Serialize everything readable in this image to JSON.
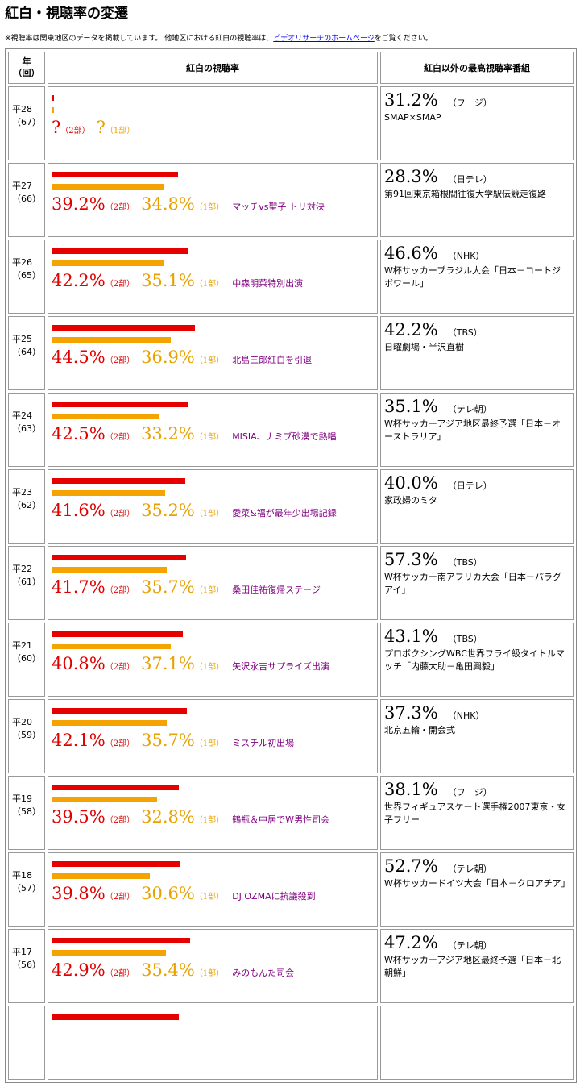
{
  "page": {
    "title": "紅白・視聴率の変遷",
    "note_before": "※視聴率は関東地区のデータを掲載しています。 他地区における紅白の視聴率は、",
    "note_link": "ビデオリサーチのホームページ",
    "note_after": "をご覧ください。"
  },
  "header": {
    "year_label": "年",
    "year_sub": "（回）",
    "kohaku_label": "紅白の視聴率",
    "top_label": "紅白以外の最高視聴率番組"
  },
  "labels": {
    "part2": "（2部）",
    "part1": "（1部）"
  },
  "colors": {
    "part2": "#e60000",
    "part1": "#f5a300",
    "event": "#800080"
  },
  "bar_scale_max": 100,
  "rows": [
    {
      "year": "平28",
      "num": "（67）",
      "part2": "?",
      "part1": "?",
      "part2_value": 1,
      "part1_value": 1,
      "event": "",
      "top_rating": "31.2%",
      "top_network": "（フ　ジ）",
      "top_program": "SMAP×SMAP"
    },
    {
      "year": "平27",
      "num": "（66）",
      "part2": "39.2%",
      "part1": "34.8%",
      "part2_value": 39.2,
      "part1_value": 34.8,
      "event": "マッチvs聖子 トリ対決",
      "top_rating": "28.3%",
      "top_network": "（日テレ）",
      "top_program": "第91回東京箱根間往復大学駅伝競走復路"
    },
    {
      "year": "平26",
      "num": "（65）",
      "part2": "42.2%",
      "part1": "35.1%",
      "part2_value": 42.2,
      "part1_value": 35.1,
      "event": "中森明菜特別出演",
      "top_rating": "46.6%",
      "top_network": "（NHK）",
      "top_program": "W杯サッカーブラジル大会「日本－コートジボワール」"
    },
    {
      "year": "平25",
      "num": "（64）",
      "part2": "44.5%",
      "part1": "36.9%",
      "part2_value": 44.5,
      "part1_value": 36.9,
      "event": "北島三郎紅白を引退",
      "top_rating": "42.2%",
      "top_network": "（TBS）",
      "top_program": "日曜劇場・半沢直樹"
    },
    {
      "year": "平24",
      "num": "（63）",
      "part2": "42.5%",
      "part1": "33.2%",
      "part2_value": 42.5,
      "part1_value": 33.2,
      "event": "MISIA、ナミブ砂漠で熱唱",
      "top_rating": "35.1%",
      "top_network": "（テレ朝）",
      "top_program": "W杯サッカーアジア地区最終予選「日本－オーストラリア」"
    },
    {
      "year": "平23",
      "num": "（62）",
      "part2": "41.6%",
      "part1": "35.2%",
      "part2_value": 41.6,
      "part1_value": 35.2,
      "event": "愛菜&福が最年少出場記録",
      "top_rating": "40.0%",
      "top_network": "（日テレ）",
      "top_program": "家政婦のミタ"
    },
    {
      "year": "平22",
      "num": "（61）",
      "part2": "41.7%",
      "part1": "35.7%",
      "part2_value": 41.7,
      "part1_value": 35.7,
      "event": "桑田佳祐復帰ステージ",
      "top_rating": "57.3%",
      "top_network": "（TBS）",
      "top_program": "W杯サッカー南アフリカ大会「日本－パラグアイ」"
    },
    {
      "year": "平21",
      "num": "（60）",
      "part2": "40.8%",
      "part1": "37.1%",
      "part2_value": 40.8,
      "part1_value": 37.1,
      "event": "矢沢永吉サプライズ出演",
      "top_rating": "43.1%",
      "top_network": "（TBS）",
      "top_program": "プロボクシングWBC世界フライ級タイトルマッチ「内藤大助－亀田興毅」"
    },
    {
      "year": "平20",
      "num": "（59）",
      "part2": "42.1%",
      "part1": "35.7%",
      "part2_value": 42.1,
      "part1_value": 35.7,
      "event": "ミスチル初出場",
      "top_rating": "37.3%",
      "top_network": "（NHK）",
      "top_program": "北京五輪・開会式"
    },
    {
      "year": "平19",
      "num": "（58）",
      "part2": "39.5%",
      "part1": "32.8%",
      "part2_value": 39.5,
      "part1_value": 32.8,
      "event": "鶴瓶＆中居でW男性司会",
      "top_rating": "38.1%",
      "top_network": "（フ　ジ）",
      "top_program": "世界フィギュアスケート選手権2007東京・女子フリー"
    },
    {
      "year": "平18",
      "num": "（57）",
      "part2": "39.8%",
      "part1": "30.6%",
      "part2_value": 39.8,
      "part1_value": 30.6,
      "event": "DJ OZMAに抗議殺到",
      "top_rating": "52.7%",
      "top_network": "（テレ朝）",
      "top_program": "W杯サッカードイツ大会「日本－クロアチア」"
    },
    {
      "year": "平17",
      "num": "（56）",
      "part2": "42.9%",
      "part1": "35.4%",
      "part2_value": 42.9,
      "part1_value": 35.4,
      "event": "みのもんた司会",
      "top_rating": "47.2%",
      "top_network": "（テレ朝）",
      "top_program": "W杯サッカーアジア地区最終予選「日本－北朝鮮」"
    },
    {
      "year": "",
      "num": "",
      "part2": "",
      "part1": "",
      "part2_value": 39.5,
      "part1_value": 0,
      "event": "",
      "top_rating": "",
      "top_network": "",
      "top_program": ""
    }
  ]
}
